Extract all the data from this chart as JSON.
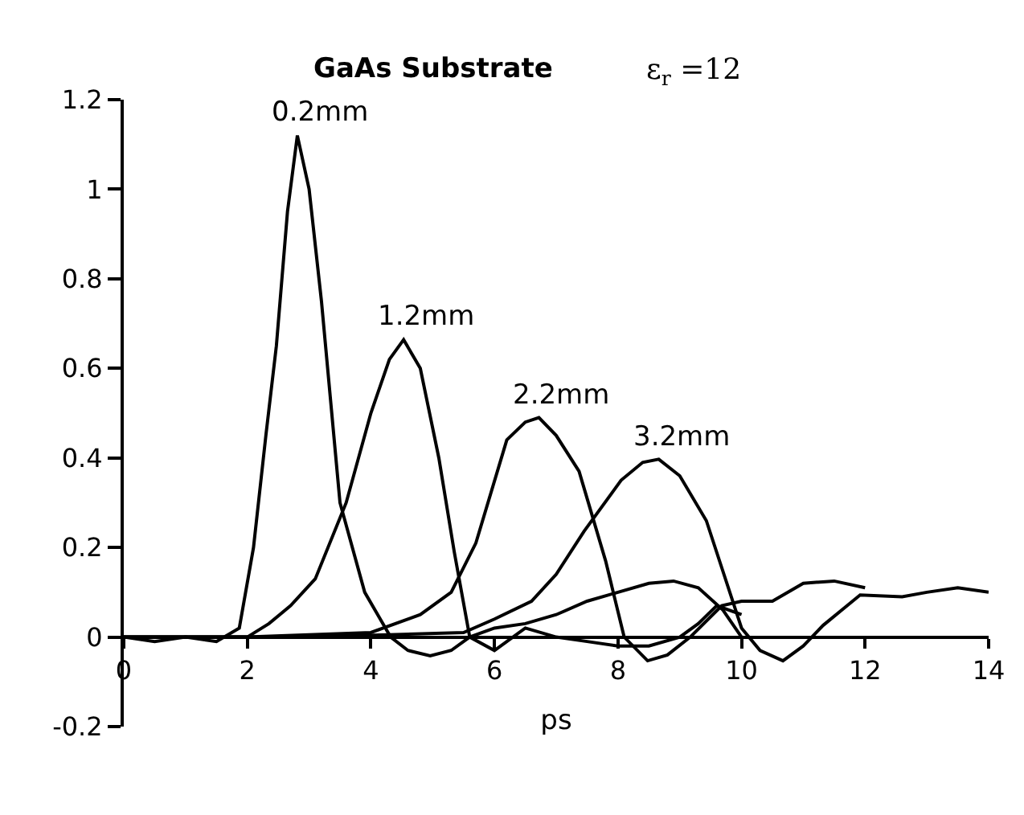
{
  "chart_data": {
    "type": "line",
    "title": "GaAs Substrate",
    "subtitle": "ε$_{r}$ =12",
    "xlabel": "ps",
    "xlim": [
      0,
      14
    ],
    "xticks": [
      0,
      2,
      4,
      6,
      8,
      10,
      12,
      14
    ],
    "ylim": [
      -0.2,
      1.2
    ],
    "yticks": [
      -0.2,
      0,
      0.2,
      0.4,
      0.6,
      0.8,
      1,
      1.2
    ],
    "legend": false,
    "marker": "none",
    "line_style": "solid",
    "series": [
      {
        "name": "0.2mm",
        "color": "#000000",
        "x": [
          0,
          0.5,
          1,
          1.5,
          1.87,
          2.1,
          2.3,
          2.47,
          2.65,
          2.81,
          3.0,
          3.2,
          3.5,
          3.9,
          4.32,
          4.6,
          4.96,
          5.3,
          5.6,
          6.0,
          6.5,
          7.0,
          7.5,
          8.0,
          8.5,
          8.9,
          9.3,
          9.7,
          10.0
        ],
        "values": [
          0,
          -0.01,
          0,
          -0.01,
          0.02,
          0.2,
          0.45,
          0.65,
          0.95,
          1.12,
          1.0,
          0.75,
          0.3,
          0.1,
          0.0,
          -0.03,
          -0.042,
          -0.03,
          0.0,
          0.02,
          0.03,
          0.05,
          0.08,
          0.1,
          0.12,
          0.125,
          0.11,
          0.06,
          0.0
        ]
      },
      {
        "name": "1.2mm",
        "color": "#000000",
        "x": [
          0,
          1,
          2.0,
          2.35,
          2.7,
          3.1,
          3.6,
          4.0,
          4.3,
          4.53,
          4.8,
          5.1,
          5.35,
          5.6,
          6.0,
          6.5,
          7.0,
          7.5,
          8.0,
          8.5,
          9.0,
          9.3,
          9.6,
          10.0
        ],
        "values": [
          0,
          0,
          0.0,
          0.03,
          0.07,
          0.13,
          0.3,
          0.5,
          0.62,
          0.664,
          0.6,
          0.4,
          0.19,
          0.0,
          -0.03,
          0.02,
          0.0,
          -0.01,
          -0.02,
          -0.02,
          0.0,
          0.03,
          0.07,
          0.05
        ]
      },
      {
        "name": "2.2mm",
        "color": "#000000",
        "x": [
          0,
          2,
          4.0,
          4.8,
          5.3,
          5.7,
          6.2,
          6.5,
          6.72,
          7.0,
          7.37,
          7.8,
          8.1,
          8.48,
          8.8,
          9.17,
          9.68,
          10.0,
          10.5,
          11.0,
          11.5,
          12.0
        ],
        "values": [
          0,
          0,
          0.01,
          0.05,
          0.1,
          0.21,
          0.44,
          0.48,
          0.49,
          0.45,
          0.37,
          0.17,
          0.0,
          -0.053,
          -0.04,
          0.0,
          0.07,
          0.08,
          0.08,
          0.12,
          0.125,
          0.11
        ]
      },
      {
        "name": "3.2mm",
        "color": "#000000",
        "x": [
          0,
          3,
          5.5,
          6.0,
          6.6,
          7.0,
          7.45,
          8.05,
          8.4,
          8.66,
          9.0,
          9.43,
          10.0,
          10.3,
          10.67,
          11.0,
          11.32,
          11.92,
          12.6,
          13.0,
          13.5,
          14.0
        ],
        "values": [
          0,
          0,
          0.01,
          0.04,
          0.08,
          0.14,
          0.236,
          0.35,
          0.39,
          0.397,
          0.36,
          0.26,
          0.02,
          -0.03,
          -0.053,
          -0.02,
          0.026,
          0.094,
          0.09,
          0.1,
          0.11,
          0.1
        ]
      }
    ]
  }
}
